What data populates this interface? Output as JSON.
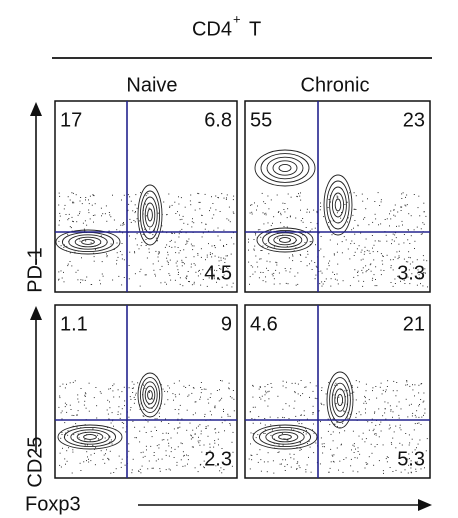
{
  "header": {
    "title": "CD4",
    "title_sup": "+",
    "title_suffix": "T"
  },
  "columns": [
    "Naive",
    "Chronic"
  ],
  "rows": [
    "PD-1",
    "CD25"
  ],
  "x_axis_label": "Foxp3",
  "panels": [
    [
      {
        "upper_left": 17,
        "upper_right": 6.8,
        "lower_right": 4.5
      },
      {
        "upper_left": 55,
        "upper_right": 23,
        "lower_right": 3.3
      }
    ],
    [
      {
        "upper_left": 1.1,
        "upper_right": 9,
        "lower_right": 2.3
      },
      {
        "upper_left": 4.6,
        "upper_right": 21,
        "lower_right": 5.3
      }
    ]
  ]
}
